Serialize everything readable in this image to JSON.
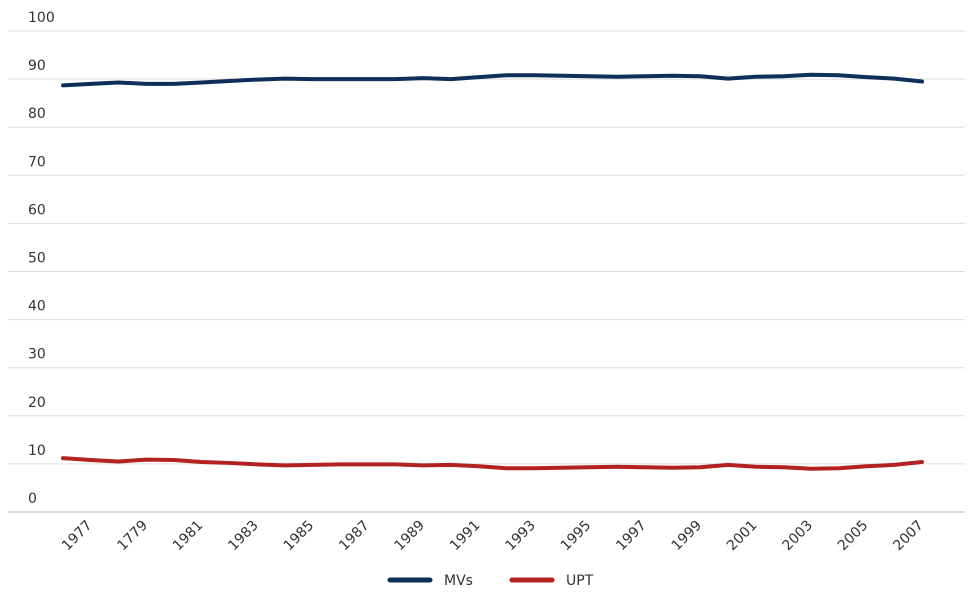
{
  "chart_data": {
    "type": "line",
    "categories": [
      null,
      "1977",
      null,
      "1779",
      null,
      "1981",
      null,
      "1983",
      null,
      "1985",
      null,
      "1987",
      null,
      "1989",
      null,
      "1991",
      null,
      "1993",
      null,
      "1995",
      null,
      "1997",
      null,
      "1999",
      null,
      "2001",
      null,
      "2003",
      null,
      "2005",
      null,
      "2007"
    ],
    "series": [
      {
        "name": "MVs",
        "color": "#0d2f5a",
        "values": [
          88.7,
          89.0,
          89.3,
          89.0,
          89.0,
          89.3,
          89.6,
          89.9,
          90.1,
          90.0,
          90.0,
          90.0,
          90.0,
          90.2,
          90.0,
          90.4,
          90.8,
          90.8,
          90.7,
          90.6,
          90.5,
          90.6,
          90.7,
          90.6,
          90.1,
          90.5,
          90.6,
          90.9,
          90.8,
          90.4,
          90.1,
          89.5
        ]
      },
      {
        "name": "UPT",
        "color": "#b22222",
        "values": [
          11.2,
          10.8,
          10.5,
          10.9,
          10.8,
          10.4,
          10.2,
          9.9,
          9.7,
          9.8,
          9.9,
          9.9,
          9.9,
          9.7,
          9.8,
          9.5,
          9.1,
          9.1,
          9.2,
          9.3,
          9.4,
          9.3,
          9.2,
          9.3,
          9.8,
          9.4,
          9.3,
          9.0,
          9.1,
          9.5,
          9.8,
          10.4
        ]
      }
    ],
    "ylim": [
      0,
      100
    ],
    "yticks": [
      0,
      10,
      20,
      30,
      40,
      50,
      60,
      70,
      80,
      90,
      100
    ],
    "grid": true,
    "legend": "bottom"
  }
}
